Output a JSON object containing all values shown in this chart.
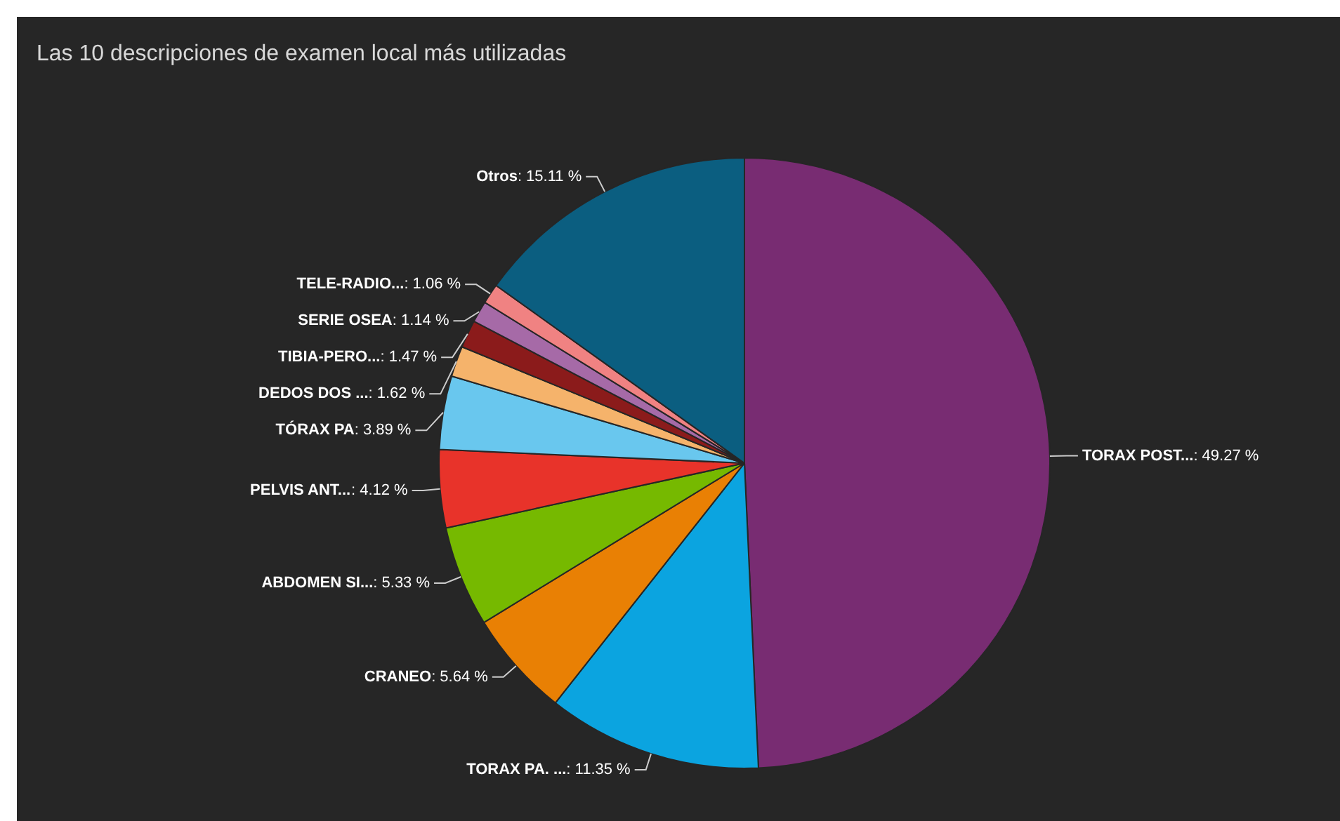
{
  "chart_data": {
    "type": "pie",
    "title": "Las 10 descripciones de examen local más utilizadas",
    "categories": [
      "TORAX POST...",
      "TORAX PA. ...",
      "CRANEO",
      "ABDOMEN SI...",
      "PELVIS ANT...",
      "TÓRAX PA",
      "DEDOS DOS ...",
      "TIBIA-PERO...",
      "SERIE OSEA",
      "TELE-RADIO...",
      "Otros"
    ],
    "values": [
      49.27,
      11.35,
      5.64,
      5.33,
      4.12,
      3.89,
      1.62,
      1.47,
      1.14,
      1.06,
      15.11
    ],
    "value_labels": [
      ": 49.27 %",
      ": 11.35 %",
      ": 5.64 %",
      ": 5.33 %",
      ": 4.12 %",
      ": 3.89 %",
      ": 1.62 %",
      ": 1.47 %",
      ": 1.14 %",
      ": 1.06 %",
      ": 15.11 %"
    ],
    "colors": [
      "#782c72",
      "#0ba4e0",
      "#e98004",
      "#76b900",
      "#e8332a",
      "#69c7ee",
      "#f5b36b",
      "#8b1b1b",
      "#a66aa7",
      "#f08282",
      "#0b5e80"
    ],
    "legend": false
  }
}
